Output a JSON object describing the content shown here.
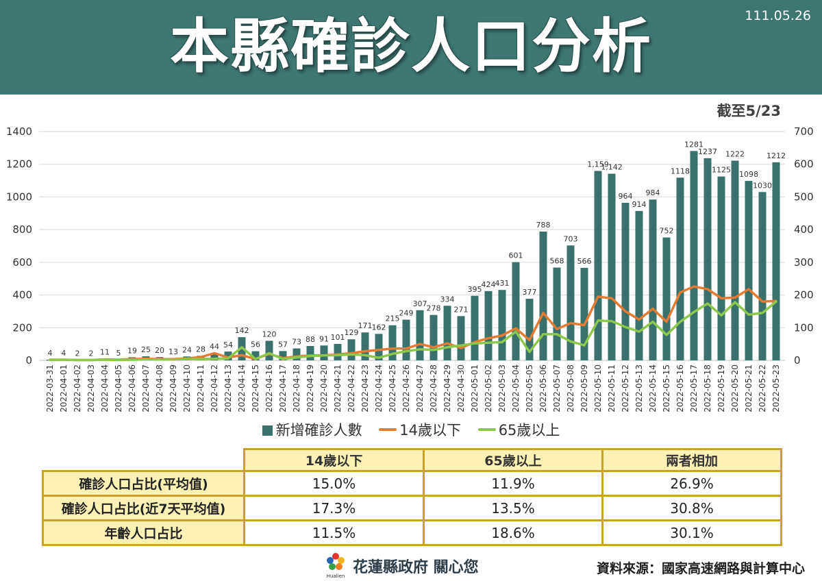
{
  "header": {
    "title": "本縣確診人口分析",
    "date": "111.05.26",
    "bg_color": "#3e7672"
  },
  "as_of": "截至5/23",
  "chart_data": {
    "type": "bar",
    "x": [
      "2022-03-31",
      "2022-04-01",
      "2022-04-02",
      "2022-04-03",
      "2022-04-04",
      "2022-04-05",
      "2022-04-06",
      "2022-04-07",
      "2022-04-08",
      "2022-04-09",
      "2022-04-10",
      "2022-04-11",
      "2022-04-12",
      "2022-04-13",
      "2022-04-14",
      "2022-04-15",
      "2022-04-16",
      "2022-04-17",
      "2022-04-18",
      "2022-04-19",
      "2022-04-20",
      "2022-04-21",
      "2022-04-22",
      "2022-04-23",
      "2022-04-24",
      "2022-04-25",
      "2022-04-26",
      "2022-04-27",
      "2022-04-28",
      "2022-04-29",
      "2022-04-30",
      "2022-05-01",
      "2022-05-02",
      "2022-05-03",
      "2022-05-04",
      "2022-05-05",
      "2022-05-06",
      "2022-05-07",
      "2022-05-08",
      "2022-05-09",
      "2022-05-10",
      "2022-05-11",
      "2022-05-12",
      "2022-05-13",
      "2022-05-14",
      "2022-05-15",
      "2022-05-16",
      "2022-05-17",
      "2022-05-18",
      "2022-05-19",
      "2022-05-20",
      "2022-05-21",
      "2022-05-22",
      "2022-05-23"
    ],
    "series": [
      {
        "name": "新增確診人數",
        "type": "bar",
        "axis": "left",
        "color": "#3a716d",
        "values": [
          4,
          4,
          2,
          2,
          11,
          5,
          19,
          25,
          20,
          13,
          24,
          28,
          44,
          54,
          142,
          56,
          120,
          57,
          73,
          88,
          91,
          101,
          129,
          171,
          162,
          215,
          249,
          307,
          278,
          334,
          271,
          395,
          424,
          431,
          601,
          377,
          788,
          568,
          703,
          566,
          1159,
          1142,
          964,
          914,
          984,
          752,
          1118,
          1281,
          1237,
          1125,
          1222,
          1098,
          1030,
          1212
        ],
        "labels": [
          "4",
          "4",
          "2",
          "2",
          "11",
          "5",
          "19",
          "25",
          "20",
          "13",
          "24",
          "28",
          "44",
          "54",
          "142",
          "56",
          "120",
          "57",
          "73",
          "88",
          "91",
          "101",
          "129",
          "171",
          "162",
          "215",
          "249",
          "307",
          "278",
          "334",
          "271",
          "395",
          "424",
          "431",
          "601",
          "377",
          "788",
          "568",
          "703",
          "566",
          "1,159",
          "1,142",
          "964",
          "914",
          "984",
          "752",
          "1118",
          "1281",
          "1237",
          "1125",
          "1222",
          "1098",
          "1030",
          "1212"
        ]
      },
      {
        "name": "14歲以下",
        "type": "line",
        "axis": "right",
        "color": "#e47b32",
        "values": [
          2,
          2,
          1,
          1,
          3,
          2,
          4,
          5,
          4,
          4,
          6,
          10,
          22,
          9,
          16,
          4,
          20,
          7,
          12,
          15,
          15,
          18,
          22,
          28,
          32,
          36,
          36,
          50,
          40,
          52,
          38,
          56,
          68,
          76,
          98,
          62,
          145,
          96,
          114,
          108,
          195,
          190,
          150,
          125,
          158,
          118,
          208,
          226,
          218,
          190,
          192,
          218,
          180,
          182
        ]
      },
      {
        "name": "65歲以上",
        "type": "line",
        "axis": "right",
        "color": "#8cc84b",
        "values": [
          1,
          2,
          1,
          1,
          2,
          1,
          2,
          3,
          3,
          3,
          4,
          4,
          5,
          6,
          40,
          4,
          22,
          4,
          9,
          13,
          15,
          16,
          18,
          16,
          8,
          20,
          28,
          34,
          32,
          40,
          46,
          52,
          54,
          56,
          88,
          26,
          80,
          80,
          58,
          46,
          122,
          120,
          102,
          88,
          118,
          78,
          118,
          148,
          174,
          138,
          178,
          140,
          145,
          180
        ]
      }
    ],
    "y_left": {
      "lim": [
        0,
        1400
      ],
      "ticks": [
        0,
        200,
        400,
        600,
        800,
        1000,
        1200,
        1400
      ]
    },
    "y_right": {
      "lim": [
        0,
        700
      ],
      "ticks": [
        0,
        100,
        200,
        300,
        400,
        500,
        600,
        700
      ]
    },
    "grid": true,
    "legend": "bottom"
  },
  "table": {
    "border_color": "#c9a227",
    "cell_bg": "#fdf1b6",
    "headers": [
      "14歲以下",
      "65歲以上",
      "兩者相加"
    ],
    "rows": [
      {
        "label": "確診人口占比(平均值)",
        "values": [
          "15.0%",
          "11.9%",
          "26.9%"
        ]
      },
      {
        "label": "確診人口占比(近7天平均值)",
        "values": [
          "17.3%",
          "13.5%",
          "30.8%"
        ]
      },
      {
        "label": "年齡人口占比",
        "values": [
          "11.5%",
          "18.6%",
          "30.1%"
        ]
      }
    ]
  },
  "footer": {
    "logo_text": "Hualien",
    "slogan": "花蓮縣政府 關心您",
    "source": "資料來源：國家高速網路與計算中心"
  }
}
